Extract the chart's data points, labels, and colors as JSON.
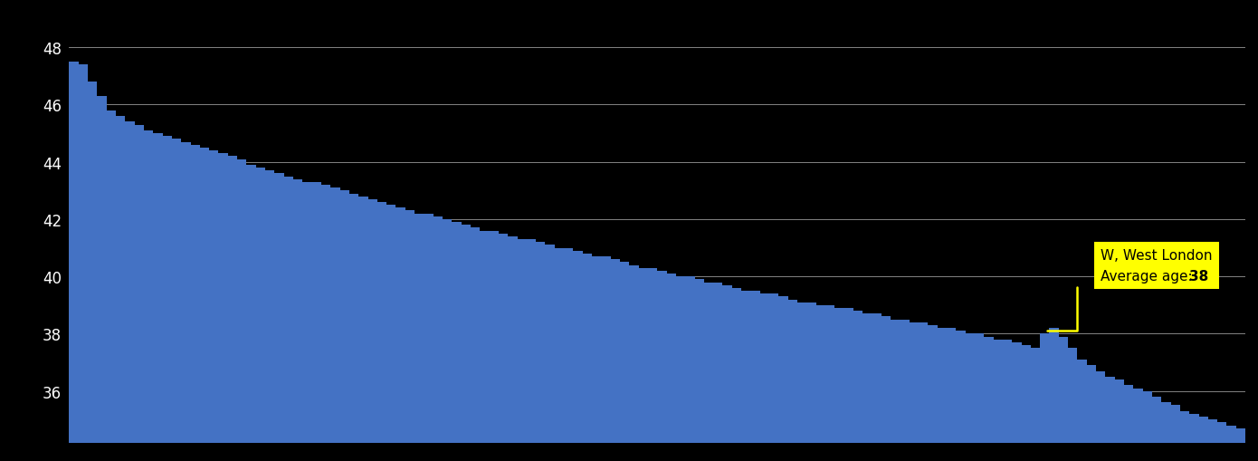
{
  "background_color": "#000000",
  "bar_color": "#4472c4",
  "grid_color": "#ffffff",
  "text_color": "#ffffff",
  "ylim": [
    34.2,
    49.2
  ],
  "yticks": [
    36,
    38,
    40,
    42,
    44,
    46,
    48
  ],
  "annotation_line1": "W, West London",
  "annotation_line2_prefix": "Average age: ",
  "annotation_line2_value": "38",
  "annotation_bar_index": 104,
  "annotation_value": 38.0,
  "annotation_box_color": "#ffff00",
  "annotation_text_color": "#000000",
  "bar_values": [
    47.5,
    47.4,
    46.8,
    46.3,
    45.8,
    45.6,
    45.4,
    45.3,
    45.1,
    45.0,
    44.9,
    44.8,
    44.7,
    44.6,
    44.5,
    44.4,
    44.3,
    44.2,
    44.1,
    43.9,
    43.8,
    43.7,
    43.6,
    43.5,
    43.4,
    43.3,
    43.3,
    43.2,
    43.1,
    43.0,
    42.9,
    42.8,
    42.7,
    42.6,
    42.5,
    42.4,
    42.3,
    42.2,
    42.2,
    42.1,
    42.0,
    41.9,
    41.8,
    41.7,
    41.6,
    41.6,
    41.5,
    41.4,
    41.3,
    41.3,
    41.2,
    41.1,
    41.0,
    41.0,
    40.9,
    40.8,
    40.7,
    40.7,
    40.6,
    40.5,
    40.4,
    40.3,
    40.3,
    40.2,
    40.1,
    40.0,
    40.0,
    39.9,
    39.8,
    39.8,
    39.7,
    39.6,
    39.5,
    39.5,
    39.4,
    39.4,
    39.3,
    39.2,
    39.1,
    39.1,
    39.0,
    39.0,
    38.9,
    38.9,
    38.8,
    38.7,
    38.7,
    38.6,
    38.5,
    38.5,
    38.4,
    38.4,
    38.3,
    38.2,
    38.2,
    38.1,
    38.0,
    38.0,
    37.9,
    37.8,
    37.8,
    37.7,
    37.6,
    37.5,
    38.0,
    38.2,
    37.9,
    37.5,
    37.1,
    36.9,
    36.7,
    36.5,
    36.4,
    36.2,
    36.1,
    36.0,
    35.8,
    35.6,
    35.5,
    35.3,
    35.2,
    35.1,
    35.0,
    34.9,
    34.8,
    34.7
  ]
}
